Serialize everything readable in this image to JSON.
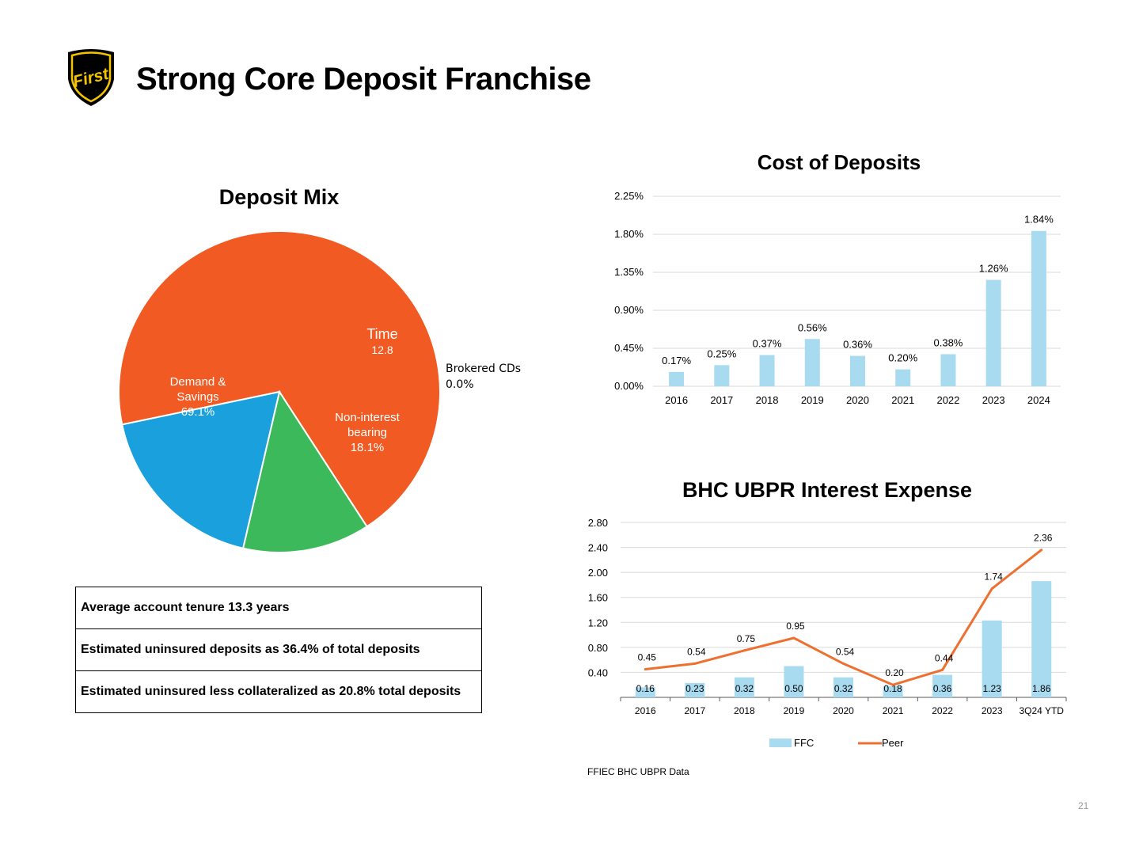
{
  "slide": {
    "title": "Strong Core Deposit Franchise",
    "logo_text": "First",
    "source_note": "FFIEC BHC UBPR Data",
    "page_number": "21"
  },
  "notes": [
    "Average account tenure 13.3 years",
    "Estimated uninsured deposits as 36.4% of total deposits",
    "Estimated uninsured less collateralized as 20.8% total deposits"
  ],
  "colors": {
    "demand": "#F15A22",
    "time": "#3CB95A",
    "noninterest": "#1AA0DC",
    "bar": "#A8DAF0",
    "line": "#ED7031",
    "logo_gold": "#F5C400"
  },
  "chart_data": [
    {
      "type": "pie",
      "title": "Deposit Mix",
      "slices": [
        {
          "name": "Demand & Savings",
          "label_lines": [
            "Demand &",
            "Savings"
          ],
          "value": 69.1,
          "value_label": "69.1%"
        },
        {
          "name": "Time",
          "label_lines": [
            "Time"
          ],
          "value": 12.8,
          "value_label": "12.8"
        },
        {
          "name": "Brokered CDs",
          "label_lines": [
            "Brokered CDs"
          ],
          "value": 0.0,
          "value_label": "0.0%"
        },
        {
          "name": "Non-interest bearing",
          "label_lines": [
            "Non-interest",
            "bearing"
          ],
          "value": 18.1,
          "value_label": "18.1%"
        }
      ]
    },
    {
      "type": "bar",
      "title": "Cost of Deposits",
      "categories": [
        "2016",
        "2017",
        "2018",
        "2019",
        "2020",
        "2021",
        "2022",
        "2023",
        "2024"
      ],
      "values": [
        0.17,
        0.25,
        0.37,
        0.56,
        0.36,
        0.2,
        0.38,
        1.26,
        1.84
      ],
      "value_labels": [
        "0.17%",
        "0.25%",
        "0.37%",
        "0.56%",
        "0.36%",
        "0.20%",
        "0.38%",
        "1.26%",
        "1.84%"
      ],
      "ylim": [
        0,
        2.25
      ],
      "yticks": [
        0,
        0.45,
        0.9,
        1.35,
        1.8,
        2.25
      ],
      "ytick_labels": [
        "0.00%",
        "0.45%",
        "0.90%",
        "1.35%",
        "1.80%",
        "2.25%"
      ]
    },
    {
      "type": "bar+line",
      "title": "BHC UBPR Interest Expense",
      "categories": [
        "2016",
        "2017",
        "2018",
        "2019",
        "2020",
        "2021",
        "2022",
        "2023",
        "3Q24 YTD"
      ],
      "series": [
        {
          "name": "FFC",
          "kind": "bar",
          "values": [
            0.16,
            0.23,
            0.32,
            0.5,
            0.32,
            0.18,
            0.36,
            1.23,
            1.86
          ],
          "value_labels": [
            "0.16",
            "0.23",
            "0.32",
            "0.50",
            "0.32",
            "0.18",
            "0.36",
            "1.23",
            "1.86"
          ]
        },
        {
          "name": "Peer",
          "kind": "line",
          "values": [
            0.45,
            0.54,
            0.75,
            0.95,
            0.54,
            0.2,
            0.44,
            1.74,
            2.36
          ],
          "value_labels": [
            "0.45",
            "0.54",
            "0.75",
            "0.95",
            "0.54",
            "0.20",
            "0.44",
            "1.74",
            "2.36"
          ]
        }
      ],
      "ylim": [
        0,
        2.8
      ],
      "yticks": [
        0.4,
        0.8,
        1.2,
        1.6,
        2.0,
        2.4,
        2.8
      ],
      "ytick_labels": [
        "0.40",
        "0.80",
        "1.20",
        "1.60",
        "2.00",
        "2.40",
        "2.80"
      ],
      "legend": "bottom"
    }
  ]
}
